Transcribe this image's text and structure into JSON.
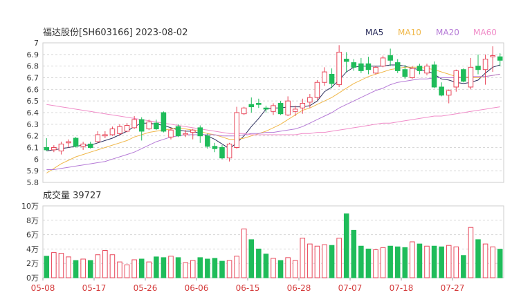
{
  "header": {
    "title": "福达股份[SH603166] 2023-08-02",
    "legend": [
      {
        "label": "MA5",
        "color": "#2b2e5c"
      },
      {
        "label": "MA10",
        "color": "#f0b84a"
      },
      {
        "label": "MA20",
        "color": "#b57ad6"
      },
      {
        "label": "MA60",
        "color": "#f08cc8"
      }
    ]
  },
  "volume_label": "成交量 39727",
  "colors": {
    "up": "#e8475a",
    "down": "#1fbc5a",
    "grid": "#d8d8d8",
    "axis": "#333333"
  },
  "chart_data": [
    {
      "type": "candlestick",
      "title": "福达股份[SH603166] 2023-08-02",
      "ylim": [
        5.8,
        7.0
      ],
      "yticks": [
        "7",
        "6.9",
        "6.8",
        "6.7",
        "6.6",
        "6.5",
        "6.4",
        "6.3",
        "6.2",
        "6.1",
        "6",
        "5.9",
        "5.8"
      ],
      "ytick_values": [
        7.0,
        6.9,
        6.8,
        6.7,
        6.6,
        6.5,
        6.4,
        6.3,
        6.2,
        6.1,
        6.0,
        5.9,
        5.8
      ],
      "xtick_labels": [
        "05-08",
        "05-17",
        "05-26",
        "06-06",
        "06-15",
        "06-28",
        "07-07",
        "07-18",
        "07-27"
      ],
      "xtick_indices": [
        0,
        7,
        14,
        21,
        28,
        35,
        42,
        49,
        56
      ],
      "ohlc": [
        [
          6.1,
          6.18,
          6.07,
          6.08
        ],
        [
          6.08,
          6.12,
          6.06,
          6.1
        ],
        [
          6.07,
          6.15,
          6.04,
          6.13
        ],
        [
          6.14,
          6.17,
          6.1,
          6.15
        ],
        [
          6.18,
          6.19,
          6.1,
          6.11
        ],
        [
          6.11,
          6.15,
          6.08,
          6.13
        ],
        [
          6.13,
          6.15,
          6.09,
          6.1
        ],
        [
          6.15,
          6.24,
          6.14,
          6.21
        ],
        [
          6.2,
          6.24,
          6.18,
          6.21
        ],
        [
          6.21,
          6.28,
          6.2,
          6.26
        ],
        [
          6.22,
          6.3,
          6.2,
          6.28
        ],
        [
          6.24,
          6.31,
          6.23,
          6.29
        ],
        [
          6.27,
          6.37,
          6.26,
          6.34
        ],
        [
          6.34,
          6.36,
          6.16,
          6.24
        ],
        [
          6.26,
          6.34,
          6.25,
          6.32
        ],
        [
          6.31,
          6.34,
          6.25,
          6.26
        ],
        [
          6.4,
          6.41,
          6.23,
          6.24
        ],
        [
          6.19,
          6.27,
          6.17,
          6.25
        ],
        [
          6.28,
          6.3,
          6.19,
          6.2
        ],
        [
          6.21,
          6.25,
          6.19,
          6.22
        ],
        [
          6.23,
          6.26,
          6.17,
          6.25
        ],
        [
          6.27,
          6.29,
          6.14,
          6.2
        ],
        [
          6.2,
          6.22,
          6.09,
          6.11
        ],
        [
          6.11,
          6.14,
          6.06,
          6.09
        ],
        [
          6.1,
          6.12,
          6.0,
          6.01
        ],
        [
          6.01,
          6.14,
          5.98,
          6.13
        ],
        [
          6.1,
          6.45,
          6.09,
          6.4
        ],
        [
          6.39,
          6.45,
          6.38,
          6.44
        ],
        [
          6.47,
          6.53,
          6.4,
          6.45
        ],
        [
          6.48,
          6.52,
          6.44,
          6.47
        ],
        [
          6.44,
          6.46,
          6.4,
          6.43
        ],
        [
          6.41,
          6.48,
          6.38,
          6.46
        ],
        [
          6.48,
          6.5,
          6.38,
          6.39
        ],
        [
          6.38,
          6.54,
          6.37,
          6.5
        ],
        [
          6.41,
          6.46,
          6.37,
          6.43
        ],
        [
          6.44,
          6.52,
          6.39,
          6.48
        ],
        [
          6.49,
          6.56,
          6.44,
          6.53
        ],
        [
          6.53,
          6.68,
          6.51,
          6.66
        ],
        [
          6.66,
          6.79,
          6.63,
          6.75
        ],
        [
          6.73,
          6.78,
          6.61,
          6.65
        ],
        [
          6.64,
          6.98,
          6.62,
          6.92
        ],
        [
          6.86,
          6.92,
          6.75,
          6.84
        ],
        [
          6.83,
          6.86,
          6.76,
          6.79
        ],
        [
          6.82,
          6.87,
          6.74,
          6.76
        ],
        [
          6.82,
          6.88,
          6.73,
          6.77
        ],
        [
          6.74,
          6.8,
          6.73,
          6.79
        ],
        [
          6.8,
          6.89,
          6.79,
          6.87
        ],
        [
          6.89,
          6.95,
          6.8,
          6.85
        ],
        [
          6.83,
          6.86,
          6.74,
          6.76
        ],
        [
          6.77,
          6.81,
          6.69,
          6.71
        ],
        [
          6.7,
          6.8,
          6.69,
          6.78
        ],
        [
          6.8,
          6.82,
          6.73,
          6.76
        ],
        [
          6.74,
          6.82,
          6.72,
          6.8
        ],
        [
          6.81,
          6.84,
          6.61,
          6.62
        ],
        [
          6.62,
          6.66,
          6.54,
          6.55
        ],
        [
          6.55,
          6.6,
          6.48,
          6.59
        ],
        [
          6.62,
          6.77,
          6.58,
          6.76
        ],
        [
          6.77,
          6.78,
          6.66,
          6.67
        ],
        [
          6.62,
          6.87,
          6.6,
          6.79
        ],
        [
          6.8,
          6.9,
          6.73,
          6.77
        ],
        [
          6.77,
          6.9,
          6.64,
          6.86
        ],
        [
          6.88,
          6.97,
          6.75,
          6.89
        ],
        [
          6.88,
          6.91,
          6.8,
          6.85
        ]
      ],
      "series": [
        {
          "name": "MA5",
          "values": [
            6.07,
            6.08,
            6.09,
            6.1,
            6.11,
            6.12,
            6.12,
            6.14,
            6.16,
            6.18,
            6.21,
            6.24,
            6.28,
            6.31,
            6.31,
            6.3,
            6.29,
            6.27,
            6.25,
            6.24,
            6.24,
            6.22,
            6.2,
            6.17,
            6.13,
            6.09,
            6.14,
            6.2,
            6.28,
            6.35,
            6.43,
            6.44,
            6.44,
            6.45,
            6.45,
            6.45,
            6.46,
            6.5,
            6.58,
            6.62,
            6.68,
            6.75,
            6.79,
            6.8,
            6.8,
            6.8,
            6.8,
            6.81,
            6.81,
            6.8,
            6.78,
            6.77,
            6.76,
            6.73,
            6.69,
            6.68,
            6.66,
            6.65,
            6.66,
            6.68,
            6.74,
            6.79,
            6.81
          ]
        },
        {
          "name": "MA10",
          "values": [
            5.88,
            5.92,
            5.96,
            5.99,
            6.02,
            6.04,
            6.06,
            6.08,
            6.1,
            6.12,
            6.14,
            6.16,
            6.19,
            6.21,
            6.23,
            6.24,
            6.25,
            6.26,
            6.27,
            6.26,
            6.25,
            6.24,
            6.22,
            6.21,
            6.19,
            6.17,
            6.17,
            6.18,
            6.2,
            6.22,
            6.24,
            6.27,
            6.3,
            6.34,
            6.38,
            6.42,
            6.44,
            6.47,
            6.5,
            6.53,
            6.57,
            6.61,
            6.65,
            6.68,
            6.71,
            6.73,
            6.75,
            6.77,
            6.78,
            6.79,
            6.79,
            6.79,
            6.78,
            6.77,
            6.75,
            6.73,
            6.71,
            6.7,
            6.7,
            6.7,
            6.71,
            6.72,
            6.73
          ]
        },
        {
          "name": "MA20",
          "values": [
            5.91,
            5.91,
            5.92,
            5.93,
            5.94,
            5.95,
            5.96,
            5.97,
            5.98,
            6.0,
            6.02,
            6.04,
            6.06,
            6.09,
            6.12,
            6.15,
            6.17,
            6.19,
            6.2,
            6.21,
            6.21,
            6.21,
            6.21,
            6.21,
            6.2,
            6.2,
            6.2,
            6.21,
            6.22,
            6.22,
            6.23,
            6.23,
            6.24,
            6.25,
            6.26,
            6.28,
            6.31,
            6.34,
            6.37,
            6.4,
            6.44,
            6.47,
            6.5,
            6.53,
            6.56,
            6.59,
            6.61,
            6.64,
            6.66,
            6.67,
            6.68,
            6.69,
            6.69,
            6.7,
            6.7,
            6.7,
            6.7,
            6.7,
            6.71,
            6.71,
            6.71,
            6.72,
            6.73
          ]
        },
        {
          "name": "MA60",
          "values": [
            6.47,
            6.46,
            6.45,
            6.44,
            6.43,
            6.42,
            6.41,
            6.4,
            6.39,
            6.38,
            6.37,
            6.36,
            6.35,
            6.34,
            6.33,
            6.32,
            6.31,
            6.3,
            6.29,
            6.28,
            6.27,
            6.26,
            6.25,
            6.24,
            6.23,
            6.22,
            6.22,
            6.22,
            6.21,
            6.21,
            6.21,
            6.21,
            6.21,
            6.21,
            6.21,
            6.22,
            6.22,
            6.23,
            6.23,
            6.24,
            6.25,
            6.26,
            6.27,
            6.28,
            6.29,
            6.3,
            6.31,
            6.31,
            6.32,
            6.33,
            6.34,
            6.35,
            6.36,
            6.37,
            6.37,
            6.38,
            6.39,
            6.4,
            6.41,
            6.42,
            6.43,
            6.44,
            6.45
          ]
        }
      ]
    },
    {
      "type": "bar",
      "title": "成交量 39727",
      "ylim": [
        0,
        100000
      ],
      "yticks": [
        "10万",
        "8万",
        "6万",
        "4万",
        "2万",
        "0万"
      ],
      "ytick_values": [
        100000,
        80000,
        60000,
        40000,
        20000,
        0
      ],
      "values": [
        30000,
        35000,
        34000,
        29000,
        24000,
        26000,
        24000,
        32000,
        38000,
        32000,
        22000,
        18000,
        25000,
        26000,
        22000,
        29000,
        28000,
        30000,
        28000,
        21000,
        24000,
        28000,
        26000,
        27000,
        23000,
        24000,
        30000,
        68000,
        53000,
        40000,
        33000,
        27000,
        24000,
        28000,
        24000,
        55000,
        47000,
        44000,
        46000,
        45000,
        55000,
        89000,
        66000,
        44000,
        40000,
        39000,
        42000,
        44000,
        43000,
        42000,
        50000,
        47000,
        44000,
        44000,
        43000,
        45000,
        43000,
        31000,
        70000,
        53000,
        47000,
        43000,
        39727
      ]
    }
  ]
}
